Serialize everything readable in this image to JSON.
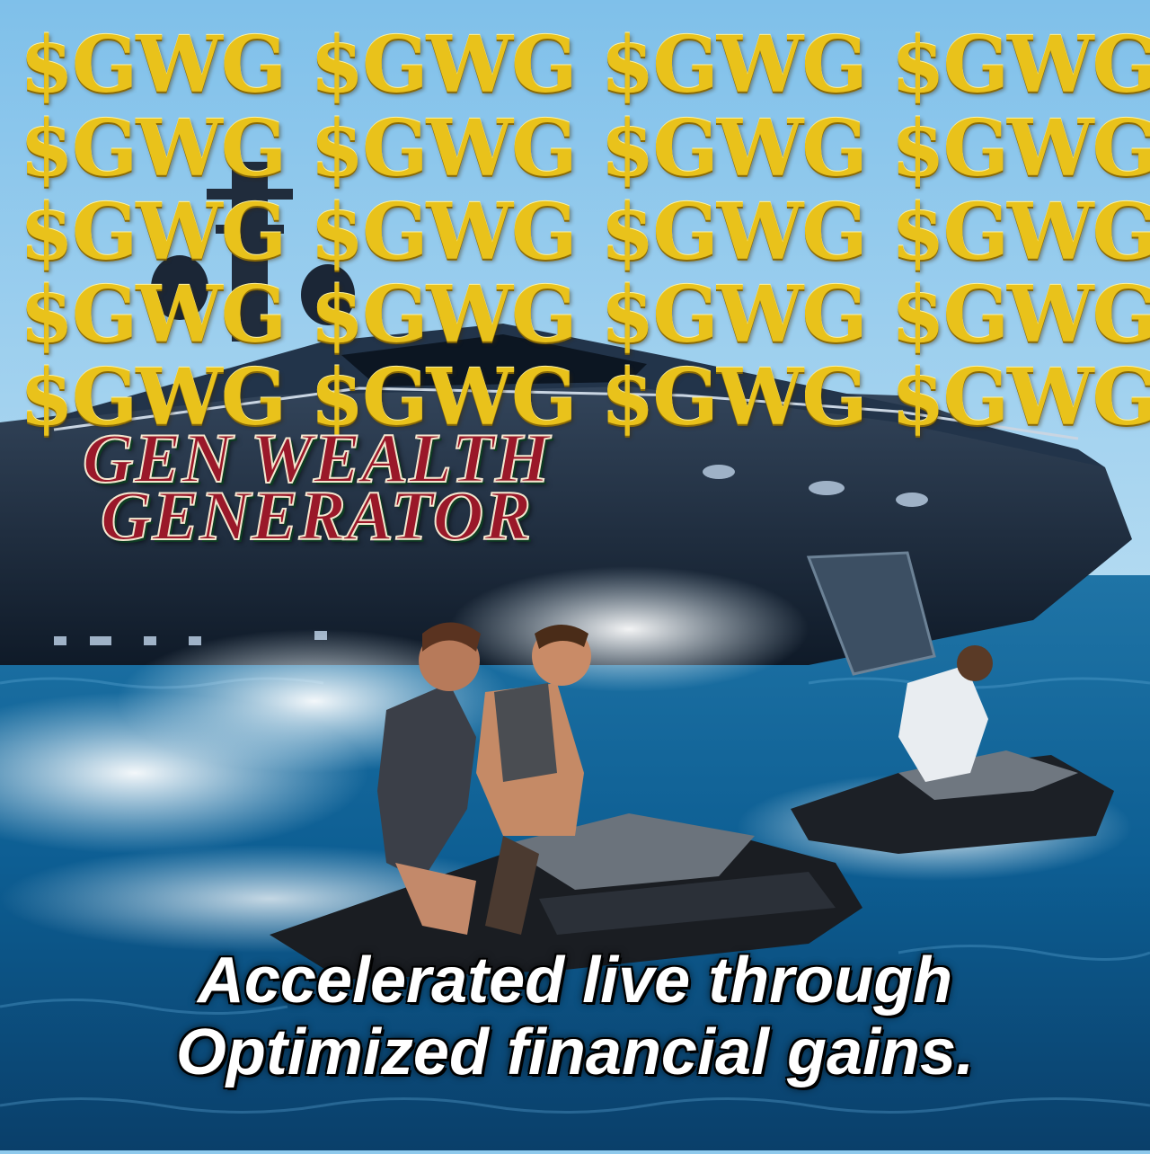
{
  "banner": {
    "ticker_rows": [
      "$GWG $GWG $GWG $GWG",
      "$GWG $GWG $GWG $GWG",
      "$GWG $GWG $GWG $GWG",
      "$GWG $GWG $GWG $GWG",
      "$GWG $GWG $GWG $GWG"
    ],
    "title_line1": "GEN WEALTH",
    "title_line2": "GENERATOR",
    "caption_line1": "Accelerated live through",
    "caption_line2": "Optimized financial gains."
  },
  "colors": {
    "sky": "#8ec9ec",
    "sea": "#0f5a8a",
    "gold": "#e9c21b",
    "title_red": "#9a1829",
    "yacht": "#1d2b3d"
  }
}
